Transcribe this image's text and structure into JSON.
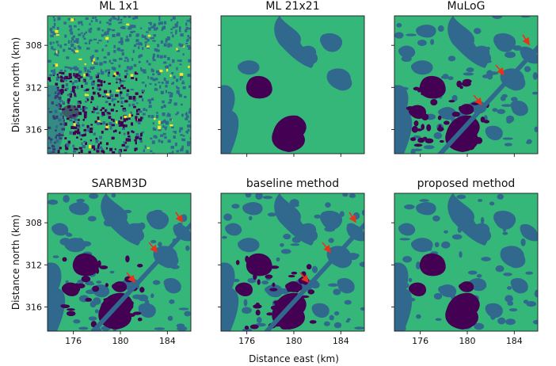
{
  "figure": {
    "xlabel": "Distance east (km)",
    "ylabel": "Distance north (km)"
  },
  "colors": {
    "class_dark": "#440154",
    "class_blue": "#31688e",
    "class_green": "#35b779",
    "class_yellow": "#fde725",
    "arrow": "#e8331c",
    "frame": "#1a1a1a"
  },
  "chart_data": [
    {
      "type": "heatmap",
      "title": "ML 1x1",
      "xlabel": "",
      "ylabel": "Distance north (km)",
      "xticks": [],
      "yticks": [
        "308",
        "312",
        "316"
      ],
      "texture": "speckle",
      "arrows": 0
    },
    {
      "type": "heatmap",
      "title": "ML 21x21",
      "xlabel": "",
      "ylabel": "",
      "xticks": [],
      "yticks": [],
      "texture": "smooth",
      "arrows": 0
    },
    {
      "type": "heatmap",
      "title": "MuLoG",
      "xlabel": "",
      "ylabel": "",
      "xticks": [],
      "yticks": [],
      "texture": "patchy",
      "arrows": 3
    },
    {
      "type": "heatmap",
      "title": "SARBM3D",
      "xlabel": "",
      "ylabel": "Distance north (km)",
      "xticks": [
        "176",
        "180",
        "184"
      ],
      "yticks": [
        "308",
        "312",
        "316"
      ],
      "texture": "patchy",
      "arrows": 3
    },
    {
      "type": "heatmap",
      "title": "baseline method",
      "xlabel": "Distance east (km)",
      "ylabel": "",
      "xticks": [
        "176",
        "180",
        "184"
      ],
      "yticks": [],
      "texture": "patchy",
      "arrows": 3
    },
    {
      "type": "heatmap",
      "title": "proposed method",
      "xlabel": "",
      "ylabel": "",
      "xticks": [
        "176",
        "180",
        "184"
      ],
      "yticks": [],
      "texture": "smooth-detailed",
      "arrows": 0
    }
  ]
}
